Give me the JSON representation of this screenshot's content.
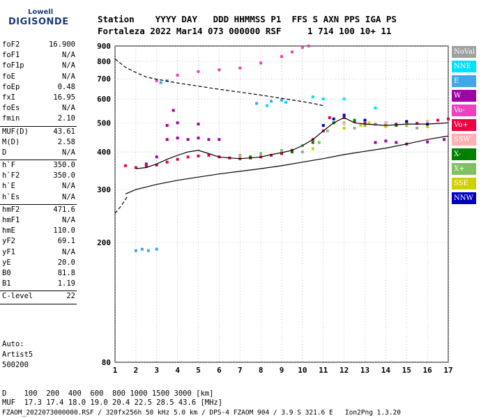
{
  "logo": {
    "line1": "Lowell",
    "line2": "DIGISONDE"
  },
  "header": {
    "line1": "Station    YYYY DAY   DDD HHMMSS P1  FFS S AXN PPS IGA PS",
    "line2": "Fortaleza 2022 Mar14 073 000000 RSF     1 714 100 10+ 11"
  },
  "params": [
    {
      "name": "foF2",
      "value": "16.900"
    },
    {
      "name": "foF1",
      "value": "N/A"
    },
    {
      "name": "foF1p",
      "value": "N/A"
    },
    {
      "name": "foE",
      "value": "N/A"
    },
    {
      "name": "foEp",
      "value": "0.48"
    },
    {
      "name": "fxI",
      "value": "16.95"
    },
    {
      "name": "foEs",
      "value": "N/A"
    },
    {
      "name": "fmin",
      "value": "2.10"
    },
    {
      "sep": true
    },
    {
      "name": "MUF(D)",
      "value": "43.61"
    },
    {
      "name": "M(D)",
      "value": "2.58"
    },
    {
      "name": "D",
      "value": "N/A"
    },
    {
      "sep": true
    },
    {
      "name": "h`F",
      "value": "350.0"
    },
    {
      "name": "h`F2",
      "value": "350.0"
    },
    {
      "name": "h`E",
      "value": "N/A"
    },
    {
      "name": "h`Es",
      "value": "N/A"
    },
    {
      "sep": true
    },
    {
      "name": "hmF2",
      "value": "471.6"
    },
    {
      "name": "hmF1",
      "value": "N/A"
    },
    {
      "name": "hmE",
      "value": "110.0"
    },
    {
      "name": "yF2",
      "value": "69.1"
    },
    {
      "name": "yF1",
      "value": "N/A"
    },
    {
      "name": "yE",
      "value": "20.0"
    },
    {
      "name": "B0",
      "value": "81.8"
    },
    {
      "name": "B1",
      "value": "1.19"
    },
    {
      "sep": true
    },
    {
      "name": "C-level",
      "value": "22"
    },
    {
      "sep": true
    }
  ],
  "autoscaling": {
    "line1": "Auto:",
    "line2": "Artist5",
    "line3": "500200"
  },
  "legend": [
    {
      "label": "NoVal",
      "color": "#a0a0a0"
    },
    {
      "label": "NNE",
      "color": "#00e0ff"
    },
    {
      "label": "E",
      "color": "#40a8e8"
    },
    {
      "label": "W",
      "color": "#a000a8"
    },
    {
      "label": "Vo-",
      "color": "#f040c0"
    },
    {
      "label": "Vo+",
      "color": "#f00040"
    },
    {
      "label": "SSW",
      "color": "#ffb0b0"
    },
    {
      "label": "X-",
      "color": "#008000"
    },
    {
      "label": "X+",
      "color": "#80c060"
    },
    {
      "label": "SSE",
      "color": "#d0d000"
    },
    {
      "label": "NNW",
      "color": "#0000c0"
    }
  ],
  "bottom": {
    "distance": "D    100  200  400  600  800 1000 1500 3000 [km]",
    "muf": "MUF  17.3 17.4 18.0 19.0 20.4 22.5 28.5 43.6 [MHz]",
    "footer": "FZAOM_2022073000000.RSF / 320fx256h 50 kHz 5.0 km / DPS-4 FZAOM 904 / 3.9 S 321.6 E   Ion2Png 1.3.20"
  },
  "chart_data": {
    "type": "scatter",
    "title": "",
    "xlabel": "",
    "ylabel": "",
    "xlim": [
      1,
      17
    ],
    "ylim": [
      80,
      900
    ],
    "y_scale": "log",
    "x_ticks": [
      1,
      2,
      3,
      4,
      5,
      6,
      7,
      8,
      9,
      10,
      11,
      12,
      13,
      14,
      15,
      16,
      17
    ],
    "y_ticks": [
      80,
      200,
      300,
      400,
      500,
      600,
      700,
      800,
      900
    ],
    "grid": true,
    "legend_position": "right",
    "series": [
      {
        "name": "Vo+",
        "color": "#f00040",
        "points": [
          [
            1.5,
            360
          ],
          [
            2,
            355
          ],
          [
            2.5,
            358
          ],
          [
            3,
            362
          ],
          [
            3.5,
            370
          ],
          [
            4,
            378
          ],
          [
            4.5,
            385
          ],
          [
            5,
            388
          ],
          [
            5.5,
            390
          ],
          [
            6,
            385
          ],
          [
            6.5,
            382
          ],
          [
            7,
            380
          ],
          [
            7.5,
            382
          ],
          [
            8,
            385
          ],
          [
            8.5,
            390
          ],
          [
            9,
            395
          ],
          [
            9.5,
            405
          ],
          [
            10,
            420
          ],
          [
            10.5,
            440
          ],
          [
            11,
            470
          ],
          [
            11.3,
            520
          ],
          [
            12,
            520
          ],
          [
            12.5,
            505
          ],
          [
            13,
            498
          ],
          [
            13.5,
            495
          ],
          [
            14,
            492
          ],
          [
            14.5,
            495
          ],
          [
            15,
            500
          ],
          [
            15.5,
            498
          ],
          [
            16,
            505
          ],
          [
            16.5,
            510
          ],
          [
            17,
            515
          ]
        ]
      },
      {
        "name": "Vo-",
        "color": "#f040c0",
        "points": [
          [
            3,
            690
          ],
          [
            4,
            720
          ],
          [
            5,
            740
          ],
          [
            6,
            750
          ],
          [
            7,
            760
          ],
          [
            8,
            790
          ],
          [
            9,
            830
          ],
          [
            9.5,
            860
          ],
          [
            10,
            890
          ],
          [
            10.3,
            900
          ]
        ]
      },
      {
        "name": "W",
        "color": "#a000a8",
        "points": [
          [
            2.5,
            365
          ],
          [
            3,
            385
          ],
          [
            3.5,
            440
          ],
          [
            4,
            445
          ],
          [
            4.5,
            440
          ],
          [
            5,
            445
          ],
          [
            5.5,
            440
          ],
          [
            6,
            440
          ],
          [
            13.5,
            430
          ],
          [
            14,
            435
          ],
          [
            14.5,
            430
          ],
          [
            15,
            425
          ],
          [
            16,
            432
          ],
          [
            16.8,
            440
          ],
          [
            3.5,
            490
          ],
          [
            4,
            500
          ],
          [
            5,
            495
          ],
          [
            3.8,
            550
          ]
        ]
      },
      {
        "name": "E",
        "color": "#40a8e8",
        "points": [
          [
            2,
            188
          ],
          [
            2.3,
            190
          ],
          [
            2.6,
            188
          ],
          [
            3,
            190
          ],
          [
            3.2,
            680
          ],
          [
            3.5,
            690
          ],
          [
            7.8,
            580
          ],
          [
            8.5,
            590
          ],
          [
            9,
            595
          ]
        ]
      },
      {
        "name": "X+",
        "color": "#80c060",
        "points": [
          [
            7,
            390
          ],
          [
            8,
            395
          ],
          [
            9,
            405
          ],
          [
            10,
            420
          ],
          [
            10.8,
            430
          ],
          [
            11.2,
            470
          ],
          [
            12,
            500
          ],
          [
            13,
            490
          ],
          [
            14,
            495
          ],
          [
            15,
            490
          ],
          [
            16,
            500
          ]
        ]
      },
      {
        "name": "SSE",
        "color": "#d0d000",
        "points": [
          [
            10.5,
            410
          ],
          [
            12,
            480
          ],
          [
            12.8,
            490
          ],
          [
            13.2,
            500
          ],
          [
            14,
            485
          ],
          [
            15,
            495
          ],
          [
            16,
            485
          ]
        ]
      },
      {
        "name": "NNW",
        "color": "#0000c0",
        "points": [
          [
            11,
            490
          ],
          [
            11.5,
            515
          ],
          [
            12,
            530
          ],
          [
            13,
            510
          ],
          [
            14,
            500
          ],
          [
            15,
            505
          ],
          [
            16,
            495
          ]
        ]
      },
      {
        "name": "X-",
        "color": "#008000",
        "points": [
          [
            7.5,
            385
          ],
          [
            9.5,
            400
          ],
          [
            10.5,
            430
          ],
          [
            11.5,
            500
          ],
          [
            12.5,
            510
          ],
          [
            14.5,
            490
          ]
        ]
      },
      {
        "name": "NNE",
        "color": "#00e0ff",
        "points": [
          [
            8.3,
            570
          ],
          [
            9.2,
            585
          ],
          [
            10.5,
            610
          ],
          [
            11,
            600
          ],
          [
            12,
            600
          ],
          [
            13.5,
            560
          ]
        ]
      },
      {
        "name": "NoVal",
        "color": "#a0a0a0",
        "points": [
          [
            10,
            400
          ],
          [
            12.5,
            480
          ],
          [
            13.5,
            495
          ],
          [
            15.5,
            480
          ]
        ]
      },
      {
        "name": "SSW",
        "color": "#ffb0b0",
        "points": [
          [
            12,
            495
          ],
          [
            14,
            500
          ],
          [
            16,
            505
          ]
        ]
      }
    ],
    "curves": [
      {
        "name": "profile",
        "color": "#000000",
        "dash": false,
        "points": [
          [
            1.5,
            290
          ],
          [
            2,
            300
          ],
          [
            3,
            312
          ],
          [
            4,
            322
          ],
          [
            5,
            330
          ],
          [
            6,
            338
          ],
          [
            7,
            345
          ],
          [
            8,
            352
          ],
          [
            9,
            360
          ],
          [
            10,
            370
          ],
          [
            11,
            380
          ],
          [
            12,
            392
          ],
          [
            13,
            402
          ],
          [
            14,
            412
          ],
          [
            15,
            425
          ],
          [
            16,
            440
          ],
          [
            17,
            452
          ]
        ]
      },
      {
        "name": "profile-extrapolation",
        "color": "#000000",
        "dash": true,
        "points": [
          [
            1,
            250
          ],
          [
            1.3,
            265
          ],
          [
            1.6,
            285
          ]
        ]
      },
      {
        "name": "MUF",
        "color": "#000000",
        "dash": true,
        "points": [
          [
            1,
            815
          ],
          [
            1.5,
            765
          ],
          [
            2,
            735
          ],
          [
            2.5,
            710
          ],
          [
            3,
            698
          ],
          [
            3.5,
            688
          ],
          [
            4,
            678
          ],
          [
            5,
            662
          ],
          [
            6,
            646
          ],
          [
            7,
            632
          ],
          [
            8,
            618
          ],
          [
            9,
            603
          ],
          [
            10,
            588
          ],
          [
            10.5,
            580
          ],
          [
            11,
            570
          ]
        ]
      },
      {
        "name": "trace",
        "color": "#000000",
        "dash": false,
        "points": [
          [
            2,
            352
          ],
          [
            2.5,
            355
          ],
          [
            3,
            365
          ],
          [
            3.5,
            378
          ],
          [
            4,
            390
          ],
          [
            4.5,
            400
          ],
          [
            5,
            405
          ],
          [
            5.5,
            395
          ],
          [
            6,
            385
          ],
          [
            6.5,
            382
          ],
          [
            7,
            380
          ],
          [
            7.5,
            382
          ],
          [
            8,
            385
          ],
          [
            8.5,
            392
          ],
          [
            9,
            398
          ],
          [
            9.5,
            405
          ],
          [
            10,
            420
          ],
          [
            10.5,
            440
          ],
          [
            11,
            470
          ],
          [
            11.5,
            500
          ],
          [
            12,
            520
          ],
          [
            12.5,
            500
          ],
          [
            13,
            495
          ],
          [
            14,
            490
          ],
          [
            15,
            495
          ],
          [
            16,
            495
          ],
          [
            17,
            500
          ]
        ]
      }
    ]
  }
}
